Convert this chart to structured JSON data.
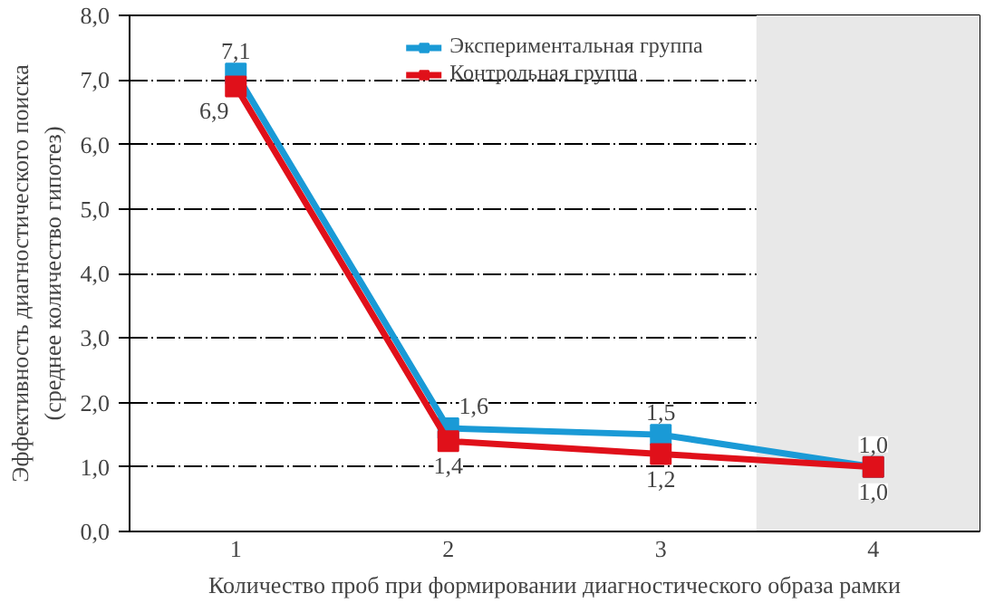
{
  "chart_data": {
    "type": "line",
    "xlabel": "Количество проб при формировании диагностического образа рамки",
    "ylabel": "Эффективность диагностического поиска\n(среднее количество гипотез)",
    "categories": [
      "1",
      "2",
      "3",
      "4"
    ],
    "series": [
      {
        "name": "Экспериментальная группа",
        "color": "#1a9ad6",
        "values": [
          7.1,
          1.6,
          1.5,
          1.0
        ],
        "value_labels": [
          "7,1",
          "1,6",
          "1,5",
          "1,0"
        ]
      },
      {
        "name": "Контрольная группа",
        "color": "#e0101a",
        "values": [
          6.9,
          1.4,
          1.2,
          1.0
        ],
        "value_labels": [
          "6,9",
          "1,4",
          "1,2",
          "1,0"
        ]
      }
    ],
    "ylim": [
      0,
      8
    ],
    "yticks": [
      {
        "value": 0,
        "label": "0,0"
      },
      {
        "value": 1,
        "label": "1,0"
      },
      {
        "value": 2,
        "label": "2,0"
      },
      {
        "value": 3,
        "label": "3,0"
      },
      {
        "value": 4,
        "label": "4,0"
      },
      {
        "value": 5,
        "label": "5,0"
      },
      {
        "value": 6,
        "label": "6,0"
      },
      {
        "value": 7,
        "label": "7,0"
      },
      {
        "value": 8,
        "label": "8,0"
      }
    ],
    "bands": [
      {
        "axis": "x",
        "from": "4",
        "to": "4",
        "color": "#e8e8e8"
      }
    ],
    "grid": "y",
    "legend": "top",
    "marker": "square",
    "line_style": "solid"
  }
}
